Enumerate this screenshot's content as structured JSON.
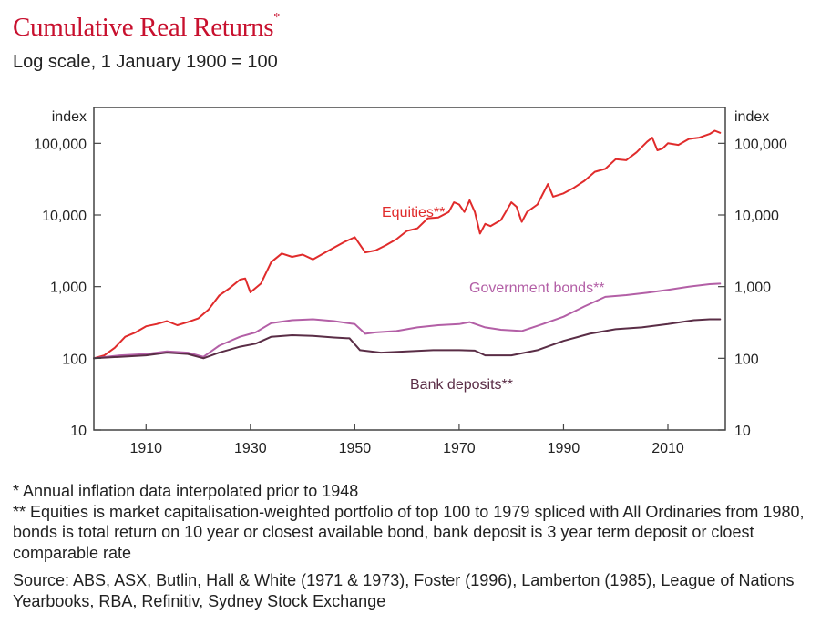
{
  "header": {
    "title": "Cumulative Real Returns",
    "title_mark": "*",
    "subtitle": "Log scale, 1 January 1900 = 100"
  },
  "notes": {
    "inflation": "* Annual inflation data interpolated prior to 1948",
    "methodology": "** Equities is market capitalisation-weighted portfolio of top 100 to 1979 spliced with All Ordinaries from 1980, bonds is total return on 10 year or closest available bond, bank deposit is 3 year term deposit or cloest comparable rate",
    "source": "Source: ABS, ASX, Butlin, Hall & White (1971 & 1973), Foster (1996), Lamberton (1985), League of Nations Yearbooks, RBA, Refinitiv, Sydney Stock Exchange"
  },
  "chart_data": {
    "type": "line",
    "title": "Cumulative Real Returns",
    "subtitle": "Log scale, 1 January 1900 = 100",
    "ylabel_left": "index",
    "ylabel_right": "index",
    "y_scale": "log",
    "ylim": [
      10,
      316228
    ],
    "xlim": [
      1900,
      2021
    ],
    "x_ticks": [
      1910,
      1930,
      1950,
      1970,
      1990,
      2010
    ],
    "x_tick_labels": [
      "1910",
      "1930",
      "1950",
      "1970",
      "1990",
      "2010"
    ],
    "y_ticks": [
      10,
      100,
      1000,
      10000,
      100000
    ],
    "y_tick_labels": [
      "10",
      "100",
      "1,000",
      "10,000",
      "100,000"
    ],
    "grid": false,
    "series": [
      {
        "name": "Equities**",
        "color": "#e02b2b",
        "x": [
          1900,
          1902,
          1904,
          1906,
          1908,
          1910,
          1912,
          1914,
          1916,
          1918,
          1920,
          1922,
          1924,
          1926,
          1928,
          1929,
          1930,
          1932,
          1934,
          1936,
          1938,
          1940,
          1942,
          1944,
          1946,
          1948,
          1950,
          1952,
          1954,
          1956,
          1958,
          1960,
          1962,
          1964,
          1966,
          1968,
          1969,
          1970,
          1971,
          1972,
          1973,
          1974,
          1975,
          1976,
          1978,
          1980,
          1981,
          1982,
          1983,
          1985,
          1987,
          1988,
          1990,
          1992,
          1994,
          1996,
          1998,
          2000,
          2002,
          2004,
          2006,
          2007,
          2008,
          2009,
          2010,
          2012,
          2014,
          2016,
          2018,
          2019,
          2020
        ],
        "values": [
          100,
          110,
          140,
          200,
          230,
          280,
          300,
          330,
          290,
          320,
          360,
          480,
          750,
          950,
          1250,
          1300,
          830,
          1100,
          2200,
          2900,
          2600,
          2800,
          2400,
          2900,
          3500,
          4200,
          4900,
          3000,
          3200,
          3800,
          4600,
          6000,
          6500,
          9000,
          9200,
          11000,
          15000,
          14000,
          11000,
          16000,
          11000,
          5500,
          7500,
          7000,
          8500,
          15000,
          13000,
          8000,
          11000,
          14000,
          27000,
          18000,
          20000,
          24000,
          30000,
          40000,
          44000,
          60000,
          58000,
          75000,
          105000,
          120000,
          80000,
          85000,
          100000,
          95000,
          115000,
          120000,
          135000,
          150000,
          140000
        ]
      },
      {
        "name": "Government bonds**",
        "color": "#b35fa6",
        "x": [
          1900,
          1905,
          1910,
          1914,
          1918,
          1921,
          1924,
          1928,
          1931,
          1934,
          1938,
          1942,
          1946,
          1950,
          1952,
          1954,
          1958,
          1962,
          1966,
          1970,
          1972,
          1975,
          1978,
          1982,
          1986,
          1990,
          1994,
          1998,
          2002,
          2006,
          2010,
          2014,
          2018,
          2020
        ],
        "values": [
          100,
          110,
          115,
          125,
          120,
          105,
          150,
          200,
          230,
          310,
          340,
          350,
          330,
          300,
          220,
          230,
          240,
          270,
          290,
          300,
          320,
          270,
          250,
          240,
          300,
          380,
          530,
          720,
          760,
          820,
          900,
          1000,
          1080,
          1100
        ]
      },
      {
        "name": "Bank deposits**",
        "color": "#5a2d46",
        "x": [
          1900,
          1905,
          1910,
          1914,
          1918,
          1921,
          1924,
          1928,
          1931,
          1934,
          1938,
          1942,
          1946,
          1949,
          1951,
          1955,
          1960,
          1965,
          1970,
          1973,
          1975,
          1980,
          1985,
          1990,
          1995,
          2000,
          2005,
          2010,
          2015,
          2018,
          2020
        ],
        "values": [
          100,
          105,
          110,
          120,
          115,
          100,
          120,
          145,
          160,
          200,
          210,
          205,
          195,
          190,
          130,
          120,
          125,
          130,
          130,
          128,
          110,
          110,
          130,
          175,
          220,
          255,
          270,
          300,
          340,
          350,
          350
        ]
      }
    ],
    "annotations": [
      "Equities**",
      "Government bonds**",
      "Bank deposits**"
    ]
  }
}
